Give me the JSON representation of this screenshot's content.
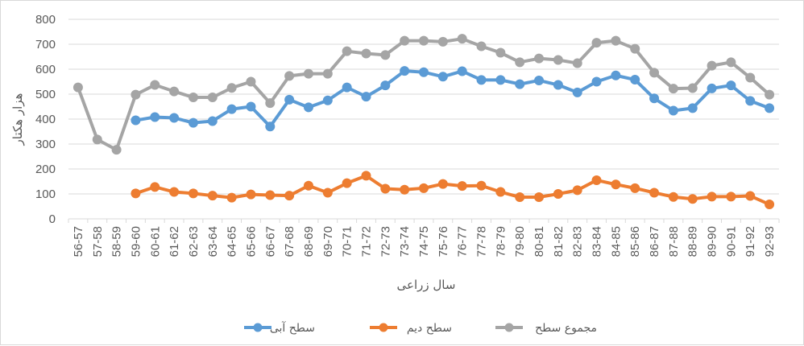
{
  "chart_data": {
    "type": "line",
    "xlabel": "سال زراعی",
    "ylabel": "هزار هکتار",
    "ylim": [
      0,
      800
    ],
    "yticks": [
      "0",
      "100",
      "200",
      "300",
      "400",
      "500",
      "600",
      "700",
      "800"
    ],
    "grid": "horizontal",
    "legend_position": "bottom",
    "categories": [
      "56-57",
      "57-58",
      "58-59",
      "59-60",
      "60-61",
      "61-62",
      "62-63",
      "63-64",
      "64-65",
      "65-66",
      "66-67",
      "67-68",
      "68-69",
      "69-70",
      "70-71",
      "71-72",
      "72-73",
      "73-74",
      "74-75",
      "75-76",
      "76-77",
      "77-78",
      "78-79",
      "79-80",
      "80-81",
      "81-82",
      "82-83",
      "83-84",
      "84-85",
      "85-86",
      "86-87",
      "87-88",
      "88-89",
      "89-90",
      "90-91",
      "91-92",
      "92-93"
    ],
    "series": [
      {
        "name": "سطح آبی",
        "color": "#5b9bd5",
        "values": [
          null,
          null,
          null,
          395,
          408,
          405,
          385,
          392,
          440,
          450,
          370,
          478,
          447,
          475,
          527,
          490,
          535,
          593,
          588,
          570,
          592,
          557,
          557,
          540,
          555,
          537,
          507,
          550,
          575,
          558,
          483,
          434,
          444,
          523,
          535,
          473,
          444
        ]
      },
      {
        "name": "سطح دیم",
        "color": "#ed7d31",
        "values": [
          null,
          null,
          null,
          102,
          128,
          108,
          102,
          93,
          85,
          98,
          95,
          93,
          133,
          105,
          143,
          173,
          121,
          117,
          123,
          140,
          132,
          133,
          108,
          87,
          87,
          100,
          115,
          155,
          138,
          123,
          105,
          88,
          80,
          89,
          89,
          92,
          58
        ]
      },
      {
        "name": "مجموع سطح",
        "color": "#a5a5a5",
        "values": [
          527,
          318,
          277,
          498,
          537,
          511,
          487,
          487,
          525,
          550,
          464,
          573,
          582,
          582,
          672,
          663,
          657,
          714,
          714,
          710,
          722,
          692,
          666,
          628,
          643,
          637,
          624,
          706,
          714,
          682,
          586,
          522,
          524,
          614,
          628,
          566,
          498
        ]
      }
    ]
  }
}
